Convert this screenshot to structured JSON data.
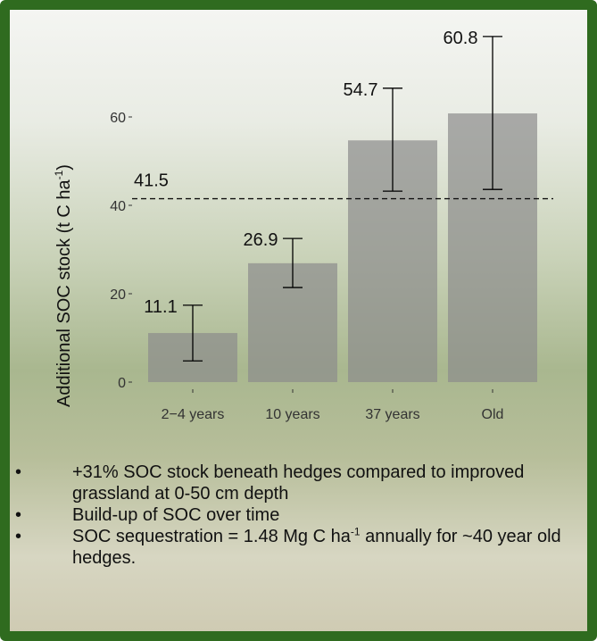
{
  "chart_data": {
    "type": "bar",
    "ylabel": {
      "text": "Additional SOC stock (t C ha",
      "superscript": "-1",
      "suffix": ")"
    },
    "categories": [
      "2−4 years",
      "10 years",
      "37 years",
      "Old"
    ],
    "values": [
      11.1,
      26.9,
      54.7,
      60.8
    ],
    "error_low": [
      4.8,
      21.4,
      43.2,
      43.6
    ],
    "error_high": [
      17.4,
      32.5,
      66.5,
      78.2
    ],
    "color": "#8c8c8c",
    "reference_line": 41.5,
    "ylim": [
      0,
      80
    ],
    "yticks": [
      0,
      20,
      40,
      60
    ]
  },
  "bullets": [
    {
      "text": "+31% SOC stock beneath hedges compared to improved grassland at 0-50 cm depth"
    },
    {
      "text": "Build-up of SOC over time"
    },
    {
      "text": "SOC sequestration = 1.48 Mg C ha",
      "superscript": "-1",
      "suffix": " annually for ~40 year old hedges."
    }
  ]
}
